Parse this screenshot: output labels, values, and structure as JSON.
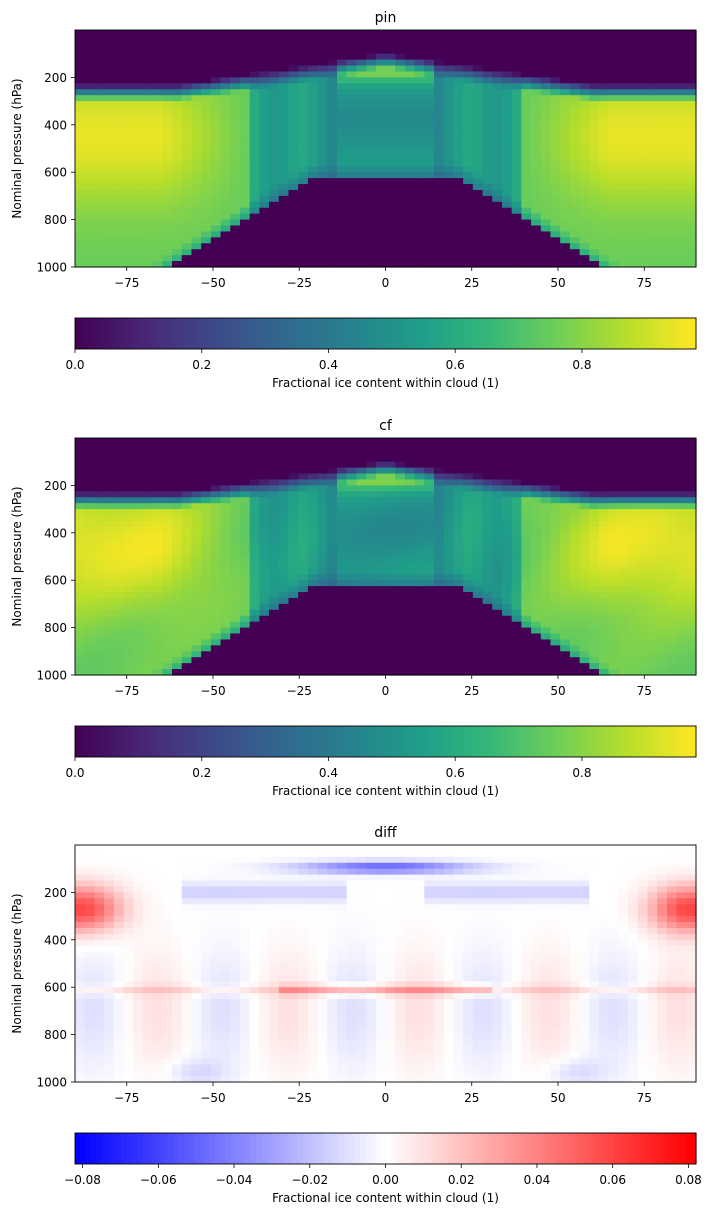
{
  "chart_data": [
    {
      "type": "heatmap",
      "title": "pin",
      "ylabel": "Nominal pressure (hPa)",
      "xlabel": "",
      "x_range": [
        -90,
        90
      ],
      "y_range": [
        1000,
        0
      ],
      "y_inverted": true,
      "x_ticks": [
        "−75",
        "−50",
        "−25",
        "0",
        "25",
        "50",
        "75"
      ],
      "x_tick_values": [
        -75,
        -50,
        -25,
        0,
        25,
        50,
        75
      ],
      "y_ticks": [
        "200",
        "400",
        "600",
        "800",
        "1000"
      ],
      "y_tick_values": [
        200,
        400,
        600,
        800,
        1000
      ],
      "colormap": "viridis",
      "colorbar": {
        "label": "Fractional ice content within cloud (1)",
        "range": [
          0,
          0.98
        ],
        "ticks": [
          "0.0",
          "0.2",
          "0.4",
          "0.6",
          "0.8"
        ],
        "tick_values": [
          0,
          0.2,
          0.4,
          0.6,
          0.8
        ]
      }
    },
    {
      "type": "heatmap",
      "title": "cf",
      "ylabel": "Nominal pressure (hPa)",
      "xlabel": "",
      "x_range": [
        -90,
        90
      ],
      "y_range": [
        1000,
        0
      ],
      "y_inverted": true,
      "x_ticks": [
        "−75",
        "−50",
        "−25",
        "0",
        "25",
        "50",
        "75"
      ],
      "x_tick_values": [
        -75,
        -50,
        -25,
        0,
        25,
        50,
        75
      ],
      "y_ticks": [
        "200",
        "400",
        "600",
        "800",
        "1000"
      ],
      "y_tick_values": [
        200,
        400,
        600,
        800,
        1000
      ],
      "colormap": "viridis",
      "colorbar": {
        "label": "Fractional ice content within cloud (1)",
        "range": [
          0,
          0.98
        ],
        "ticks": [
          "0.0",
          "0.2",
          "0.4",
          "0.6",
          "0.8"
        ],
        "tick_values": [
          0,
          0.2,
          0.4,
          0.6,
          0.8
        ]
      }
    },
    {
      "type": "heatmap",
      "title": "diff",
      "ylabel": "Nominal pressure (hPa)",
      "xlabel": "",
      "x_range": [
        -90,
        90
      ],
      "y_range": [
        1000,
        0
      ],
      "y_inverted": true,
      "x_ticks": [
        "−75",
        "−50",
        "−25",
        "0",
        "25",
        "50",
        "75"
      ],
      "x_tick_values": [
        -75,
        -50,
        -25,
        0,
        25,
        50,
        75
      ],
      "y_ticks": [
        "200",
        "400",
        "600",
        "800",
        "1000"
      ],
      "y_tick_values": [
        200,
        400,
        600,
        800,
        1000
      ],
      "colormap": "bwr",
      "colorbar": {
        "label": "Fractional ice content within cloud (1)",
        "range": [
          -0.082,
          0.082
        ],
        "ticks": [
          "−0.08",
          "−0.06",
          "−0.04",
          "−0.02",
          "0.00",
          "0.02",
          "0.04",
          "0.06",
          "0.08"
        ],
        "tick_values": [
          -0.08,
          -0.06,
          -0.04,
          -0.02,
          0,
          0.02,
          0.04,
          0.06,
          0.08
        ]
      }
    }
  ]
}
